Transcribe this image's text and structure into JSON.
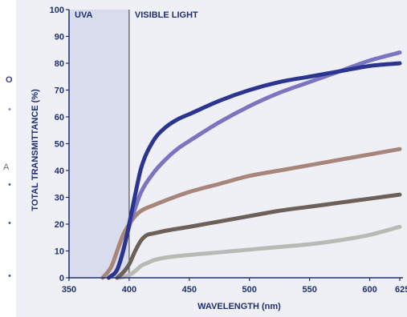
{
  "chart_data": {
    "type": "line",
    "title": "",
    "xlabel": "WAVELENGTH (nm)",
    "ylabel": "TOTAL TRANSMITTANCE (%)",
    "xlim": [
      350,
      625
    ],
    "ylim": [
      0,
      100
    ],
    "x_ticks": [
      "350",
      "400",
      "450",
      "500",
      "550",
      "600",
      "625"
    ],
    "y_ticks": [
      "0",
      "10",
      "20",
      "30",
      "40",
      "50",
      "60",
      "70",
      "80",
      "90",
      "100"
    ],
    "grid": false,
    "colors": {
      "background": "#eef0f5",
      "uva_band": "#d9dcec",
      "axis": "#1f2f6e",
      "text": "#1f2f6e"
    },
    "regions": [
      {
        "label": "UVA",
        "from": 350,
        "to": 400
      },
      {
        "label": "VISIBLE LIGHT",
        "from": 400,
        "to": 625
      }
    ],
    "series": [
      {
        "color": "#2b3590",
        "x": [
          383,
          390,
          395,
          400,
          405,
          410,
          420,
          430,
          440,
          450,
          475,
          500,
          525,
          550,
          575,
          600,
          625
        ],
        "y": [
          0,
          3,
          10,
          20,
          31,
          41,
          51,
          56,
          59,
          61,
          66,
          70,
          73,
          75,
          77,
          79,
          80
        ]
      },
      {
        "color": "#7b74c0",
        "x": [
          383,
          390,
          395,
          400,
          405,
          410,
          420,
          430,
          440,
          450,
          475,
          500,
          525,
          550,
          575,
          600,
          625
        ],
        "y": [
          0,
          3,
          10,
          19,
          26,
          32,
          39,
          44,
          48,
          51,
          58,
          64,
          69,
          73,
          77,
          81,
          84
        ]
      },
      {
        "color": "#a8857a",
        "x": [
          378,
          385,
          390,
          395,
          400,
          405,
          410,
          420,
          450,
          475,
          500,
          525,
          550,
          575,
          600,
          625
        ],
        "y": [
          0,
          4,
          10,
          16,
          20,
          23,
          25,
          27,
          32,
          35,
          38,
          40,
          42,
          44,
          46,
          48
        ]
      },
      {
        "color": "#6c6058",
        "x": [
          390,
          395,
          400,
          405,
          410,
          415,
          420,
          430,
          450,
          475,
          500,
          525,
          550,
          575,
          600,
          625
        ],
        "y": [
          0,
          2,
          5,
          10,
          14,
          16,
          16.5,
          17.5,
          19,
          21,
          23,
          25,
          26.5,
          28,
          29.5,
          31
        ]
      },
      {
        "color": "#b7bbb4",
        "x": [
          392,
          397,
          400,
          405,
          410,
          415,
          420,
          430,
          450,
          475,
          500,
          525,
          550,
          575,
          600,
          625
        ],
        "y": [
          0,
          0.5,
          1,
          2.5,
          4.5,
          5.5,
          6.5,
          7.5,
          8.5,
          9.5,
          10.5,
          11.5,
          12.5,
          14,
          16,
          19
        ]
      }
    ]
  },
  "edge_marks": [
    {
      "text": "O",
      "color": "#3a3f8f"
    },
    {
      "text": "•",
      "color": "#8e84c6"
    },
    {
      "text": "A",
      "color": "#6d6d6d"
    },
    {
      "text": "•",
      "color": "#3b5a9c"
    },
    {
      "text": "•",
      "color": "#3b5a9c"
    },
    {
      "text": "•",
      "color": "#3b5a9c"
    }
  ]
}
